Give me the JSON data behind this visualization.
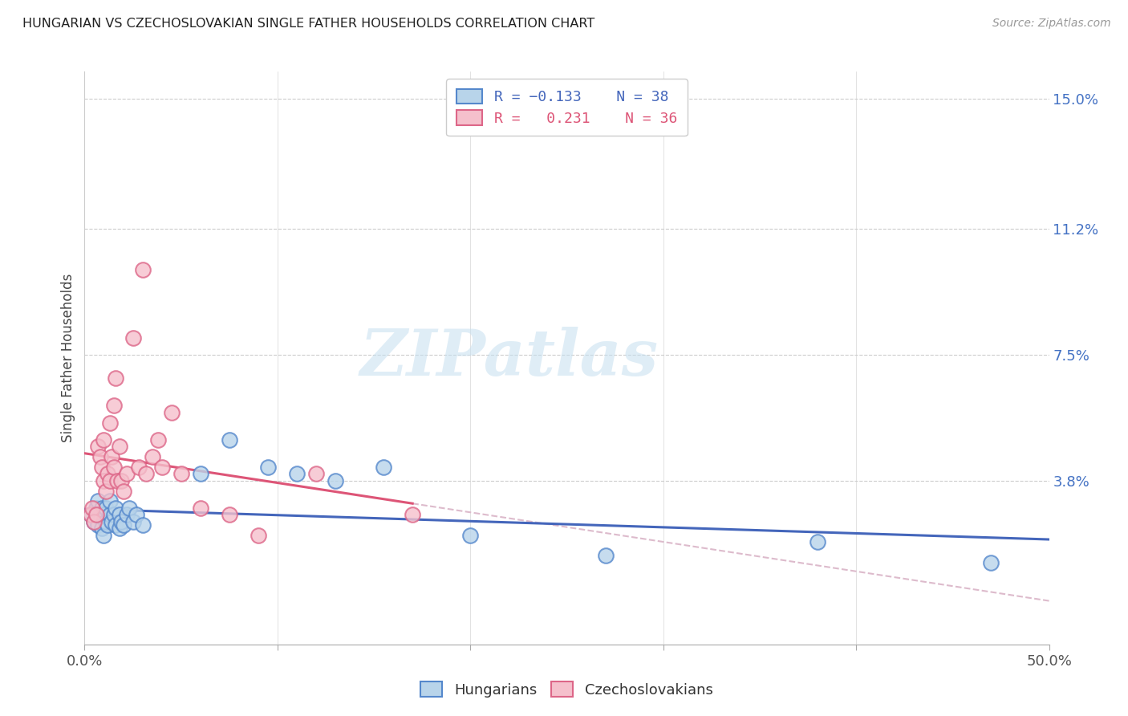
{
  "title": "HUNGARIAN VS CZECHOSLOVAKIAN SINGLE FATHER HOUSEHOLDS CORRELATION CHART",
  "source": "Source: ZipAtlas.com",
  "ylabel": "Single Father Households",
  "xlim": [
    0.0,
    0.5
  ],
  "ylim": [
    -0.01,
    0.158
  ],
  "yticks": [
    0.038,
    0.075,
    0.112,
    0.15
  ],
  "ytick_labels": [
    "3.8%",
    "7.5%",
    "11.2%",
    "15.0%"
  ],
  "xtick_vals": [
    0.0,
    0.1,
    0.2,
    0.3,
    0.4,
    0.5
  ],
  "xtick_labels": [
    "0.0%",
    "",
    "",
    "",
    "",
    "50.0%"
  ],
  "color_blue_fill": "#b8d4ea",
  "color_blue_edge": "#5588cc",
  "color_pink_fill": "#f5c0cc",
  "color_pink_edge": "#dd6688",
  "color_blue_line": "#4466bb",
  "color_pink_line": "#dd5577",
  "color_dashed": "#ddbbcc",
  "background_color": "#ffffff",
  "grid_color": "#cccccc",
  "watermark_text": "ZIPatlas",
  "hungarian_x": [
    0.003,
    0.005,
    0.006,
    0.007,
    0.007,
    0.008,
    0.009,
    0.009,
    0.01,
    0.01,
    0.011,
    0.011,
    0.012,
    0.013,
    0.013,
    0.014,
    0.015,
    0.016,
    0.016,
    0.018,
    0.018,
    0.019,
    0.02,
    0.022,
    0.023,
    0.025,
    0.027,
    0.03,
    0.06,
    0.075,
    0.095,
    0.11,
    0.13,
    0.155,
    0.2,
    0.27,
    0.38,
    0.47
  ],
  "hungarian_y": [
    0.028,
    0.026,
    0.03,
    0.025,
    0.032,
    0.028,
    0.024,
    0.03,
    0.022,
    0.028,
    0.026,
    0.03,
    0.025,
    0.028,
    0.032,
    0.026,
    0.028,
    0.025,
    0.03,
    0.024,
    0.028,
    0.026,
    0.025,
    0.028,
    0.03,
    0.026,
    0.028,
    0.025,
    0.04,
    0.05,
    0.042,
    0.04,
    0.038,
    0.042,
    0.022,
    0.016,
    0.02,
    0.014
  ],
  "czech_x": [
    0.003,
    0.004,
    0.005,
    0.006,
    0.007,
    0.008,
    0.009,
    0.01,
    0.01,
    0.011,
    0.012,
    0.013,
    0.013,
    0.014,
    0.015,
    0.015,
    0.016,
    0.017,
    0.018,
    0.019,
    0.02,
    0.022,
    0.025,
    0.028,
    0.03,
    0.032,
    0.035,
    0.038,
    0.04,
    0.045,
    0.05,
    0.06,
    0.075,
    0.09,
    0.12,
    0.17
  ],
  "czech_y": [
    0.028,
    0.03,
    0.026,
    0.028,
    0.048,
    0.045,
    0.042,
    0.05,
    0.038,
    0.035,
    0.04,
    0.038,
    0.055,
    0.045,
    0.042,
    0.06,
    0.068,
    0.038,
    0.048,
    0.038,
    0.035,
    0.04,
    0.08,
    0.042,
    0.1,
    0.04,
    0.045,
    0.05,
    0.042,
    0.058,
    0.04,
    0.03,
    0.028,
    0.022,
    0.04,
    0.028
  ]
}
